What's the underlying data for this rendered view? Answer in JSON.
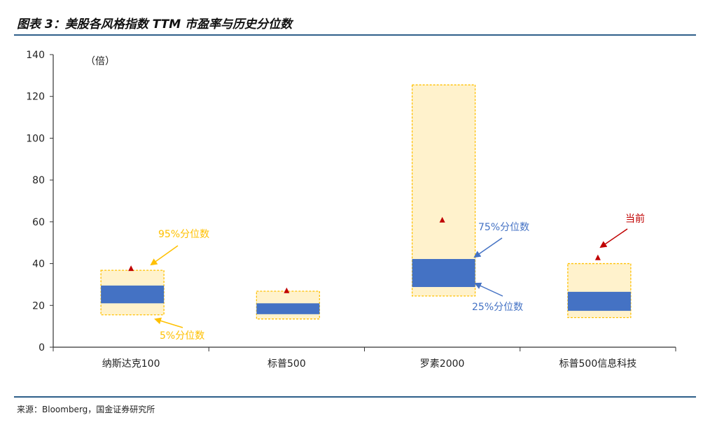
{
  "title": "图表 3：美股各风格指数 TTM 市盈率与历史分位数",
  "source": "来源：Bloomberg，国金证券研究所",
  "colors": {
    "outer_fill": "#fff2cc",
    "outer_border": "#ffc000",
    "inner_fill": "#4472c4",
    "current_marker": "#c00000",
    "label_95_5": "#ffc000",
    "label_75_25": "#4472c4",
    "label_current": "#c00000"
  },
  "chart_data": {
    "type": "bar",
    "subtype": "floating percentile boxes",
    "unit_label": "（倍）",
    "ylim": [
      0,
      140
    ],
    "yticks": [
      0,
      20,
      40,
      60,
      80,
      100,
      120,
      140
    ],
    "grid": false,
    "categories": [
      "纳斯达克100",
      "标普500",
      "罗素2000",
      "标普500信息科技"
    ],
    "series": [
      {
        "name": "5%分位数",
        "values": [
          15.5,
          13.5,
          24.5,
          14.2
        ]
      },
      {
        "name": "25%分位数",
        "values": [
          21.0,
          15.8,
          28.8,
          17.4
        ]
      },
      {
        "name": "75%分位数",
        "values": [
          29.5,
          21.0,
          42.2,
          26.5
        ]
      },
      {
        "name": "95%分位数",
        "values": [
          36.8,
          26.8,
          125.5,
          40.0
        ]
      },
      {
        "name": "当前",
        "values": [
          37.8,
          27.2,
          61.0,
          43.0
        ]
      }
    ],
    "annotations": [
      "95%分位数",
      "5%分位数",
      "75%分位数",
      "25%分位数",
      "当前"
    ]
  }
}
